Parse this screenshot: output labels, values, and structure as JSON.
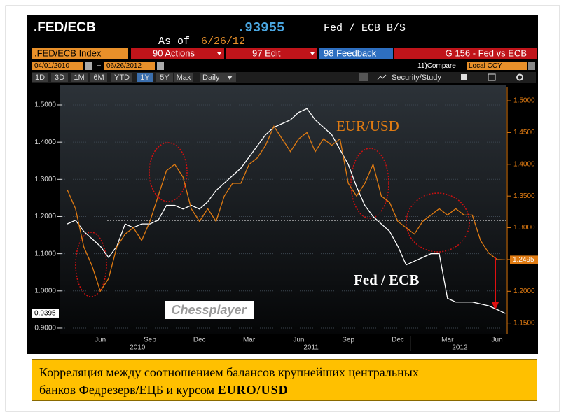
{
  "header": {
    "ticker": ".FED/ECB",
    "last": ".93955",
    "description": "Fed / ECB B/S",
    "as_of_label": "As of",
    "as_of_date": "6/26/12"
  },
  "toolbar": {
    "index": ".FED/ECB Index",
    "actions": "90 Actions",
    "edit": "97 Edit",
    "feedback": "98 Feedback",
    "function": "G 156 - Fed vs ECB",
    "start_date": "04/01/2010",
    "end_date": "06/26/2012",
    "compare": "11)Compare",
    "currency": "Local CCY",
    "ranges": [
      "1D",
      "3D",
      "1M",
      "6M",
      "YTD",
      "1Y",
      "5Y",
      "Max"
    ],
    "frequency": "Daily",
    "study": "Security/Study"
  },
  "chart_data": {
    "type": "line",
    "categories": [
      null,
      null,
      null,
      null,
      "Jun",
      null,
      null,
      null,
      null,
      null,
      "Sep",
      null,
      null,
      null,
      null,
      null,
      "Dec",
      null,
      null,
      null,
      null,
      null,
      "Mar",
      null,
      null,
      null,
      null,
      null,
      "Jun",
      null,
      null,
      null,
      null,
      null,
      "Sep",
      null,
      null,
      null,
      null,
      null,
      "Dec",
      null,
      null,
      null,
      null,
      null,
      "Mar",
      null,
      null,
      null,
      null,
      null,
      "Jun",
      null
    ],
    "year_labels": [
      "2010",
      "2011",
      "2012"
    ],
    "series": [
      {
        "name": "Fed / ECB",
        "color": "#ffffff",
        "axis": "y",
        "values": [
          1.18,
          1.19,
          1.16,
          1.14,
          1.12,
          1.09,
          1.12,
          1.18,
          1.17,
          1.18,
          1.18,
          1.19,
          1.23,
          1.23,
          1.22,
          1.23,
          1.22,
          1.24,
          1.27,
          1.29,
          1.31,
          1.33,
          1.36,
          1.39,
          1.42,
          1.44,
          1.45,
          1.46,
          1.48,
          1.49,
          1.46,
          1.44,
          1.42,
          1.38,
          1.34,
          1.28,
          1.23,
          1.2,
          1.18,
          1.16,
          1.12,
          1.07,
          1.08,
          1.09,
          1.1,
          1.1,
          0.98,
          0.97,
          0.97,
          0.97,
          0.965,
          0.96,
          0.95,
          0.9395
        ]
      },
      {
        "name": "EUR/USD",
        "color": "#e07b12",
        "axis": "y2",
        "values": [
          1.36,
          1.33,
          1.27,
          1.24,
          1.2,
          1.22,
          1.27,
          1.29,
          1.3,
          1.28,
          1.31,
          1.35,
          1.39,
          1.4,
          1.38,
          1.33,
          1.31,
          1.33,
          1.31,
          1.35,
          1.37,
          1.37,
          1.4,
          1.41,
          1.43,
          1.46,
          1.44,
          1.42,
          1.44,
          1.45,
          1.42,
          1.44,
          1.43,
          1.44,
          1.37,
          1.35,
          1.37,
          1.4,
          1.35,
          1.34,
          1.31,
          1.3,
          1.29,
          1.31,
          1.32,
          1.33,
          1.32,
          1.33,
          1.32,
          1.32,
          1.28,
          1.26,
          1.25,
          1.2495
        ]
      }
    ],
    "ylim": [
      0.883,
      1.547
    ],
    "yticks": [
      {
        "value": 0.9,
        "label": "0.9000"
      },
      {
        "value": 1.0,
        "label": "1.0000"
      },
      {
        "value": 1.1,
        "label": "1.1000"
      },
      {
        "value": 1.2,
        "label": "1.2000"
      },
      {
        "value": 1.3,
        "label": "1.3000"
      },
      {
        "value": 1.4,
        "label": "1.4000"
      },
      {
        "value": 1.5,
        "label": "1.5000"
      }
    ],
    "y2lim": [
      1.132,
      1.521
    ],
    "y2ticks": [
      {
        "value": 1.15,
        "label": "1.1500"
      },
      {
        "value": 1.2,
        "label": "1.2000"
      },
      {
        "value": 1.25,
        "label": "1.2500"
      },
      {
        "value": 1.3,
        "label": "1.3000"
      },
      {
        "value": 1.35,
        "label": "1.3500"
      },
      {
        "value": 1.4,
        "label": "1.4000"
      },
      {
        "value": 1.45,
        "label": "1.4500"
      },
      {
        "value": 1.5,
        "label": "1.5000"
      }
    ],
    "grid": true,
    "annotations": {
      "eurusd": "EUR/USD",
      "fedecb": "Fed / ECB",
      "watermark": "Chessplayer"
    }
  },
  "caption": {
    "line1": "Корреляция между соотношением балансов крупнейших центральных",
    "line2": [
      "банков ",
      "Федрезерв",
      "/",
      "ЕЦБ и курсом ",
      "EURO/USD"
    ]
  }
}
